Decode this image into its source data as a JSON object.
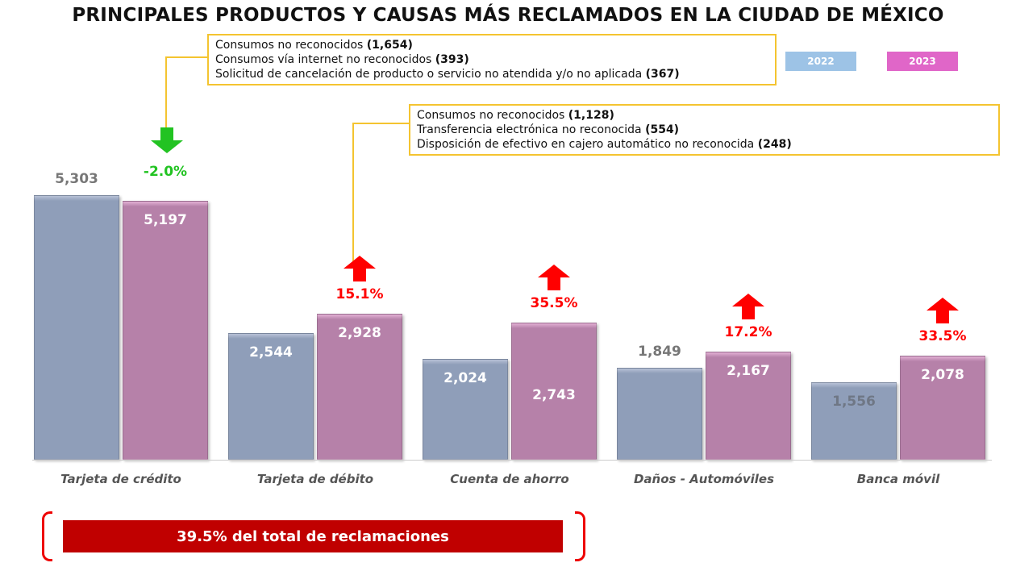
{
  "chart_data": {
    "type": "bar",
    "title": "PRINCIPALES PRODUCTOS Y CAUSAS MÁS RECLAMADOS EN LA CIUDAD DE MÉXICO",
    "categories": [
      "Tarjeta de crédito",
      "Tarjeta de débito",
      "Cuenta de ahorro",
      "Daños - Automóviles",
      "Banca móvil"
    ],
    "series": [
      {
        "name": "2022",
        "color": "#9dc3e6",
        "values": [
          5303,
          2544,
          2024,
          1849,
          1556
        ],
        "labels": [
          "5,303",
          "2,544",
          "2,024",
          "1,849",
          "1,556"
        ]
      },
      {
        "name": "2023",
        "color": "#e066c8",
        "values": [
          5197,
          2928,
          2743,
          2167,
          2078
        ],
        "labels": [
          "5,197",
          "2,928",
          "2,743",
          "2,167",
          "2,078"
        ]
      }
    ],
    "changes": [
      {
        "label": "-2.0%",
        "direction": "down",
        "color": "#22c322"
      },
      {
        "label": "15.1%",
        "direction": "up",
        "color": "#ff0000"
      },
      {
        "label": "35.5%",
        "direction": "up",
        "color": "#ff0000"
      },
      {
        "label": "17.2%",
        "direction": "up",
        "color": "#ff0000"
      },
      {
        "label": "33.5%",
        "direction": "up",
        "color": "#ff0000"
      }
    ],
    "legend_position": "top-right",
    "grid": false,
    "ylim": [
      0,
      5500
    ]
  },
  "annotations": [
    {
      "category": "Tarjeta de crédito",
      "lines": [
        {
          "text": "Consumos no reconocidos ",
          "count": "(1,654)"
        },
        {
          "text": "Consumos vía internet no reconocidos ",
          "count": "(393)"
        },
        {
          "text": "Solicitud de cancelación de producto o servicio no atendida y/o no aplicada ",
          "count": "(367)"
        }
      ]
    },
    {
      "category": "Tarjeta de débito",
      "lines": [
        {
          "text": "Consumos no reconocidos ",
          "count": "(1,128)"
        },
        {
          "text": "Transferencia electrónica no reconocida ",
          "count": "(554)"
        },
        {
          "text": "Disposición de efectivo en cajero automático no reconocida ",
          "count": "(248)"
        }
      ]
    }
  ],
  "banner": "39.5% del total de reclamaciones"
}
